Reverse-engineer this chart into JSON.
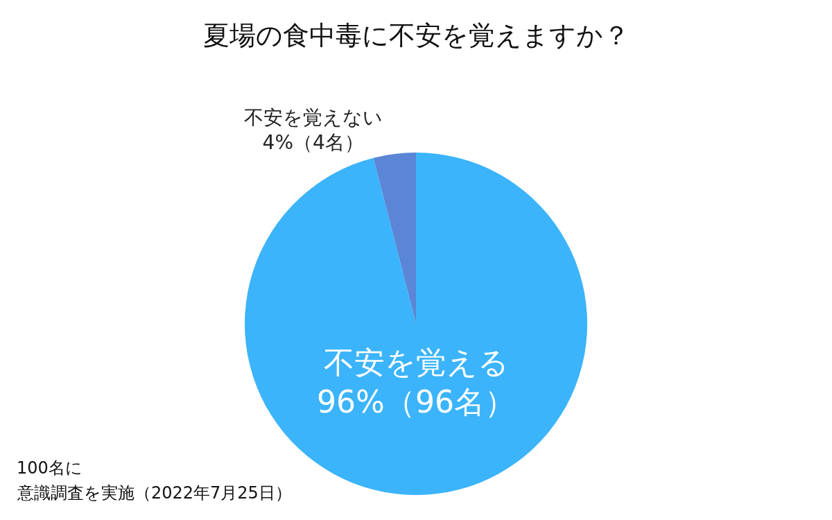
{
  "chart_data": {
    "type": "pie",
    "title": "夏場の食中毒に不安を覚えますか？",
    "categories": [
      "不安を覚える",
      "不安を覚えない"
    ],
    "values": [
      96,
      4
    ],
    "colors": [
      "#3bb4fb",
      "#5b86d6"
    ],
    "value_labels": [
      "96%（96名）",
      "4%（4名）"
    ],
    "legend": false,
    "annotations": [
      "100名に",
      "意識調査を実施（2022年7月25日）"
    ]
  }
}
